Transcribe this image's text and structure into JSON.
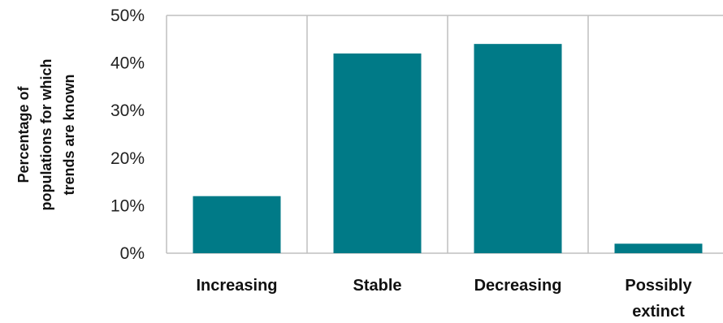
{
  "chart_data": {
    "type": "bar",
    "categories": [
      [
        "Increasing"
      ],
      [
        "Stable"
      ],
      [
        "Decreasing"
      ],
      [
        "Possibly",
        "extinct"
      ]
    ],
    "values": [
      12,
      42,
      44,
      2
    ],
    "ylim": [
      0,
      50
    ],
    "yticks": [
      "0%",
      "10%",
      "20%",
      "30%",
      "40%",
      "50%"
    ],
    "ylabel": [
      "Percentage  of",
      "populations  for which",
      "trends  are  known"
    ],
    "title": "",
    "xlabel": "",
    "bar_color": "#007a87",
    "grid_color": "#bfbfbf",
    "grid": "vertical separators between categories",
    "legend": "none"
  }
}
